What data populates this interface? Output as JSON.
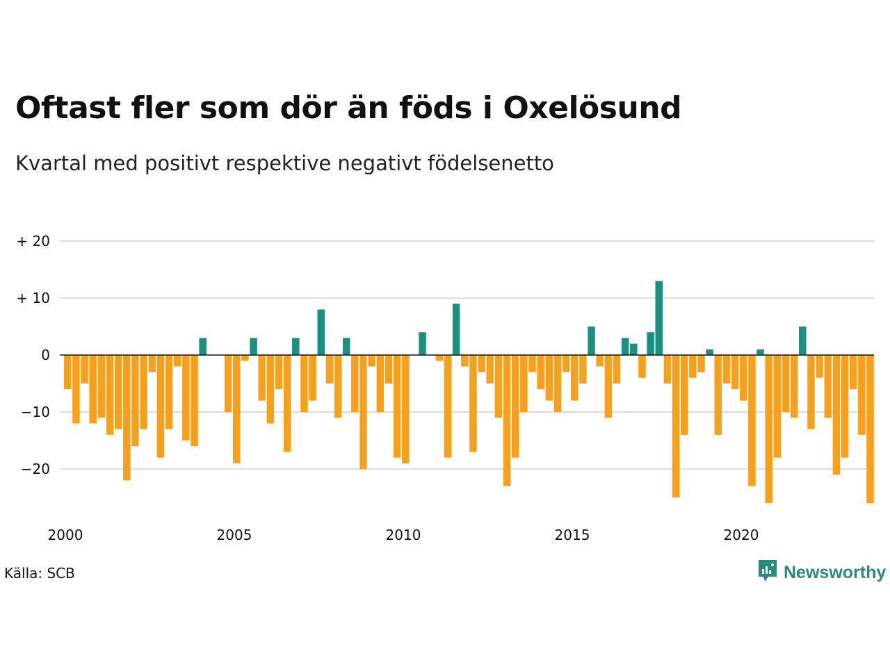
{
  "title": "Oftast fler som dör än föds i Oxelösund",
  "subtitle": "Kvartal med positivt respektive negativt födelsenetto",
  "source": "Källa: SCB",
  "brand": {
    "name": "Newsworthy",
    "icon": "newsworthy-logo-icon"
  },
  "colors": {
    "positive": "#1a9080",
    "negative": "#f7a01c",
    "grid": "#dddddd",
    "zero_line": "#111111"
  },
  "chart_data": {
    "type": "bar",
    "x_start": "2000 Q1",
    "x_ticks": [
      "2000",
      "2005",
      "2010",
      "2015",
      "2020"
    ],
    "y_ticks": [
      "+ 20",
      "+ 10",
      "0",
      "−10",
      "−20"
    ],
    "y_tick_values": [
      20,
      10,
      0,
      -10,
      -20
    ],
    "ylim": [
      -28,
      22
    ],
    "grid": true,
    "values": [
      -6,
      -12,
      -5,
      -12,
      -11,
      -14,
      -13,
      -22,
      -16,
      -13,
      -3,
      -18,
      -13,
      -2,
      -15,
      -16,
      3,
      0,
      0,
      -10,
      -19,
      -1,
      3,
      -8,
      -12,
      -6,
      -17,
      3,
      -10,
      -8,
      8,
      -5,
      -11,
      3,
      -10,
      -20,
      -2,
      -10,
      -5,
      -18,
      -19,
      0,
      4,
      0,
      -1,
      -18,
      9,
      -2,
      -17,
      -3,
      -5,
      -11,
      -23,
      -18,
      -10,
      -3,
      -6,
      -8,
      -10,
      -3,
      -8,
      -5,
      5,
      -2,
      -11,
      -5,
      3,
      2,
      -4,
      4,
      13,
      -5,
      -25,
      -14,
      -4,
      -3,
      1,
      -14,
      -5,
      -6,
      -8,
      -23,
      1,
      -26,
      -18,
      -10,
      -11,
      5,
      -13,
      -4,
      -11,
      -21,
      -18,
      -6,
      -14,
      -26
    ]
  }
}
